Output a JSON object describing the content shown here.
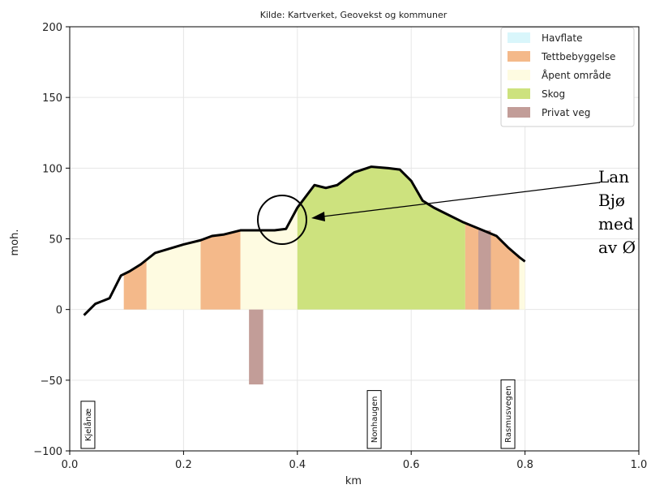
{
  "chart_data": {
    "type": "area",
    "title": "Kilde: Kartverket, Geovekst og kommuner",
    "xlabel": "km",
    "ylabel": "moh.",
    "xlim": [
      0.0,
      1.0
    ],
    "ylim": [
      -100,
      200
    ],
    "xticks": [
      "0.0",
      "0.2",
      "0.4",
      "0.6",
      "0.8",
      "1.0"
    ],
    "yticks": [
      "200",
      "150",
      "100",
      "50",
      "0",
      "−50",
      "−100"
    ],
    "grid": true,
    "legend_position": "top-right",
    "legend": [
      {
        "label": "Havflate",
        "color": "#d9f6fb"
      },
      {
        "label": "Tettbebyggelse",
        "color": "#f4b98a"
      },
      {
        "label": "Åpent område",
        "color": "#fefbe1"
      },
      {
        "label": "Skog",
        "color": "#cde27e"
      },
      {
        "label": "Privat veg",
        "color": "#c29d98"
      }
    ],
    "profile": {
      "x": [
        0.025,
        0.045,
        0.07,
        0.09,
        0.105,
        0.125,
        0.15,
        0.175,
        0.2,
        0.23,
        0.25,
        0.27,
        0.3,
        0.32,
        0.34,
        0.36,
        0.38,
        0.4,
        0.43,
        0.45,
        0.47,
        0.5,
        0.53,
        0.56,
        0.58,
        0.6,
        0.62,
        0.64,
        0.66,
        0.69,
        0.72,
        0.75,
        0.77,
        0.79,
        0.8
      ],
      "y": [
        -4,
        4,
        8,
        24,
        27,
        32,
        40,
        43,
        46,
        49,
        52,
        53,
        56,
        56,
        56,
        56,
        57,
        72,
        88,
        86,
        88,
        97,
        101,
        100,
        99,
        91,
        77,
        72,
        68,
        62,
        57,
        52,
        44,
        37,
        34
      ]
    },
    "land_cover": [
      {
        "class": "Tettbebyggelse",
        "x0": 0.095,
        "x1": 0.135
      },
      {
        "class": "Åpent område",
        "x0": 0.135,
        "x1": 0.23
      },
      {
        "class": "Tettbebyggelse",
        "x0": 0.23,
        "x1": 0.3
      },
      {
        "class": "Åpent område",
        "x0": 0.3,
        "x1": 0.4
      },
      {
        "class": "Skog",
        "x0": 0.4,
        "x1": 0.695
      },
      {
        "class": "Tettbebyggelse",
        "x0": 0.695,
        "x1": 0.79
      },
      {
        "class": "Åpent område",
        "x0": 0.79,
        "x1": 0.8
      }
    ],
    "roads": [
      {
        "class": "Privat veg",
        "x0": 0.315,
        "x1": 0.34,
        "y0": -53,
        "y1": 0
      },
      {
        "class": "Privat veg",
        "x0": 0.718,
        "x1": 0.74,
        "y0": 0,
        "y1": 56
      }
    ],
    "place_labels": [
      {
        "text": "Kjelånæ",
        "x": 0.032
      },
      {
        "text": "Nonhaugen",
        "x": 0.535
      },
      {
        "text": "Rasmusvegen",
        "x": 0.77
      }
    ]
  },
  "annotation": {
    "lines": [
      "Lan",
      "Bjø",
      "med",
      "av Ø"
    ]
  }
}
